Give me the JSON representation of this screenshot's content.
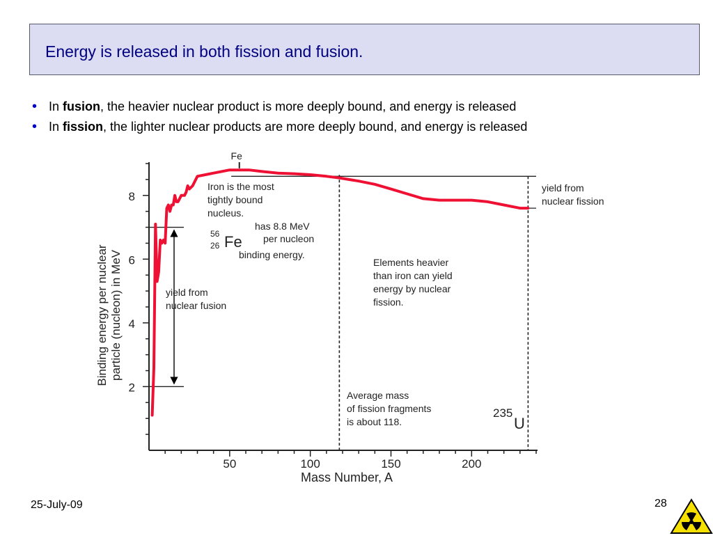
{
  "title": "Energy is released in both fission and fusion.",
  "bullets": [
    {
      "prefix": "In ",
      "term": "fusion",
      "rest": ", the heavier nuclear product is more deeply bound, and energy is released"
    },
    {
      "prefix": "In ",
      "term": "fission",
      "rest": ", the lighter nuclear products are more deeply bound, and energy is released"
    }
  ],
  "chart_data": {
    "type": "line",
    "xlabel": "Mass Number, A",
    "ylabel_line1": "Binding energy per nuclear",
    "ylabel_line2": "particle (nucleon) in MeV",
    "xlim": [
      0,
      240
    ],
    "ylim": [
      0,
      9
    ],
    "x_ticks": [
      50,
      100,
      150,
      200
    ],
    "y_ticks": [
      2,
      4,
      6,
      8
    ],
    "series_color": "#ee1133",
    "series": [
      {
        "x": [
          2,
          3,
          4,
          5,
          6,
          7,
          8,
          9,
          10,
          11,
          12,
          13,
          14,
          15,
          16,
          17,
          18,
          19,
          20,
          21,
          22,
          23,
          24,
          25,
          27,
          30,
          35,
          40,
          50,
          56,
          62,
          70,
          80,
          90,
          100,
          110,
          118,
          130,
          140,
          150,
          160,
          170,
          180,
          190,
          200,
          210,
          220,
          230,
          235
        ],
        "y": [
          1.1,
          2.6,
          7.1,
          5.3,
          5.6,
          6.6,
          6.5,
          6.6,
          6.5,
          7.6,
          7.7,
          7.5,
          7.7,
          7.7,
          8.0,
          7.8,
          7.8,
          7.9,
          8.0,
          8.0,
          8.0,
          8.1,
          8.3,
          8.2,
          8.3,
          8.6,
          8.65,
          8.7,
          8.8,
          8.8,
          8.8,
          8.75,
          8.7,
          8.68,
          8.65,
          8.6,
          8.55,
          8.45,
          8.35,
          8.2,
          8.05,
          7.9,
          7.85,
          7.85,
          7.85,
          7.8,
          7.7,
          7.6,
          7.6
        ]
      }
    ],
    "annotations": {
      "fe_top": "Fe",
      "iron_note": [
        "Iron is the most",
        "tightly bound",
        "nucleus."
      ],
      "fe56_mass": "56",
      "fe56_atomic": "26",
      "fe56_symbol": "Fe",
      "fe56_note": [
        "has 8.8 MeV",
        "per nucleon",
        "binding energy."
      ],
      "fusion_yield": [
        "yield from",
        "nuclear fusion"
      ],
      "fission_yield": [
        "yield from",
        "nuclear fission"
      ],
      "heavier": [
        "Elements heavier",
        "than iron can yield",
        "energy by nuclear",
        "fission."
      ],
      "avg_mass": [
        "Average mass",
        "of fission fragments",
        "is about 118."
      ],
      "u_mass": "235",
      "u_symbol": "U"
    },
    "reference_lines": {
      "fe_x": 56,
      "fission_avg_x": 118,
      "uranium_x": 235,
      "fusion_low_y": 2,
      "fusion_high_y": 7,
      "peak_y": 8.6,
      "uranium_y": 7.6
    }
  },
  "footer": {
    "date": "25-July-09",
    "page": "28"
  },
  "colors": {
    "title_bg": "#dcdcf2",
    "title_text": "#000080",
    "bullet": "#0000c8",
    "logo_bg": "#f5e000"
  }
}
